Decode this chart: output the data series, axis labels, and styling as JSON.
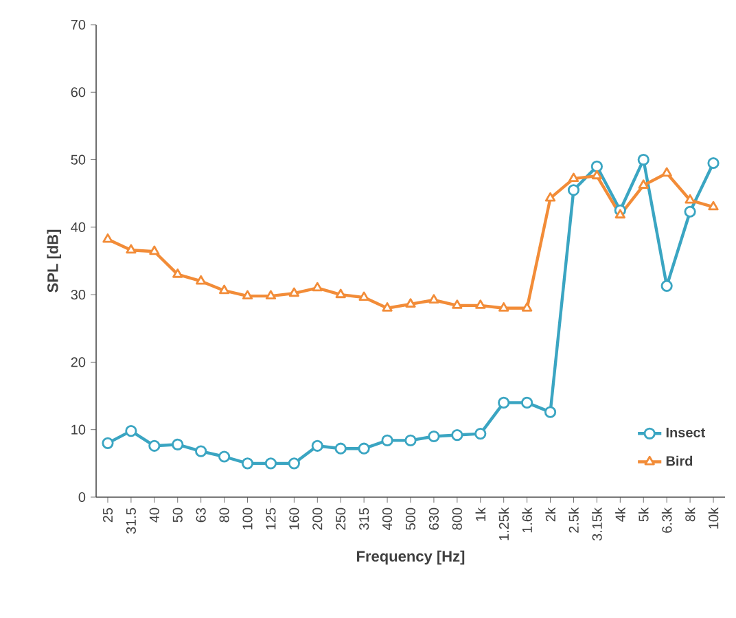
{
  "chart_data": {
    "type": "line",
    "xlabel": "Frequency [Hz]",
    "ylabel": "SPL [dB]",
    "categories": [
      "25",
      "31.5",
      "40",
      "50",
      "63",
      "80",
      "100",
      "125",
      "160",
      "200",
      "250",
      "315",
      "400",
      "500",
      "630",
      "800",
      "1k",
      "1.25k",
      "1.6k",
      "2k",
      "2.5k",
      "3.15k",
      "4k",
      "5k",
      "6.3k",
      "8k",
      "10k"
    ],
    "series": [
      {
        "name": "Insect",
        "color": "#3aa5c2",
        "marker": "circle",
        "values": [
          8,
          9.8,
          7.6,
          7.8,
          6.8,
          6,
          5,
          5,
          5,
          7.6,
          7.2,
          7.2,
          8.4,
          8.4,
          9,
          9.2,
          9.4,
          14,
          14,
          12.6,
          45.5,
          49,
          42.5,
          50,
          31.3,
          42.3,
          49.5
        ]
      },
      {
        "name": "Bird",
        "color": "#f28c38",
        "marker": "triangle",
        "values": [
          38.2,
          36.6,
          36.4,
          33,
          32,
          30.6,
          29.8,
          29.8,
          30.2,
          31,
          30,
          29.6,
          28,
          28.6,
          29.2,
          28.4,
          28.4,
          28,
          28,
          44.3,
          47.2,
          47.6,
          41.8,
          46.2,
          48,
          44,
          43
        ]
      }
    ],
    "ylim": [
      0,
      70
    ],
    "yticks": [
      0,
      10,
      20,
      30,
      40,
      50,
      60,
      70
    ],
    "grid": false,
    "legend": "bottom right",
    "line_style": "solid"
  }
}
